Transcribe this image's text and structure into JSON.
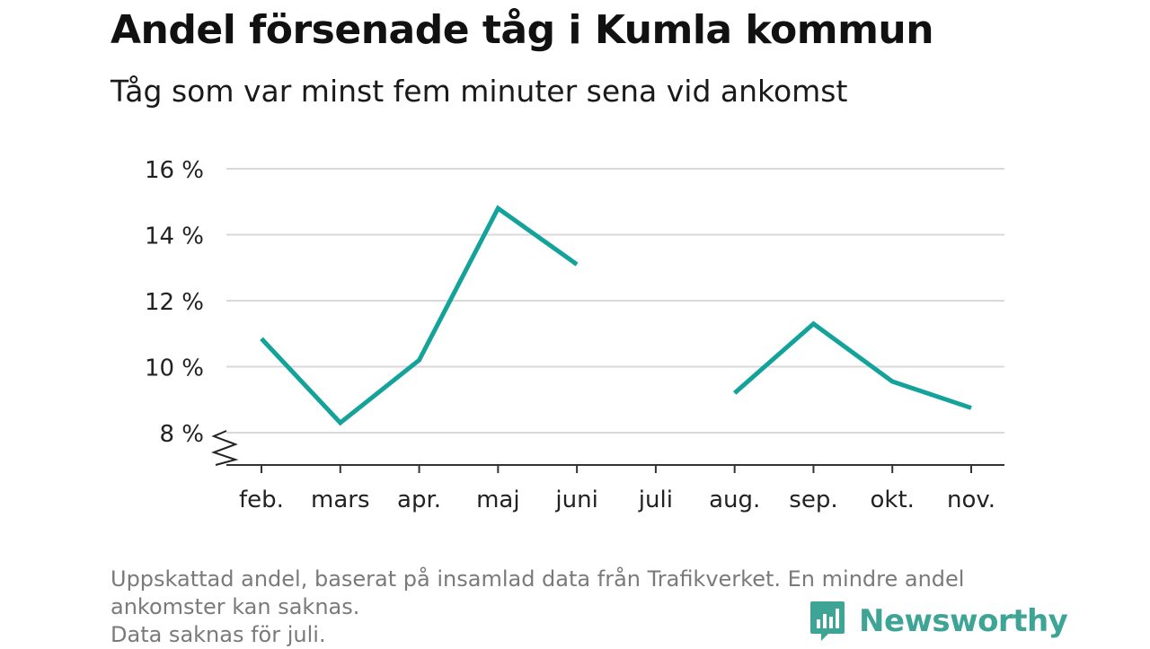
{
  "header": {
    "title": "Andel försenade tåg i Kumla kommun",
    "subtitle": "Tåg som var minst fem minuter sena vid ankomst"
  },
  "footnote": {
    "line1": "Uppskattad andel, baserat på insamlad data från Trafikverket. En mindre andel",
    "line2": "ankomster kan saknas.",
    "line3": "Data saknas för juli."
  },
  "logo": {
    "text": "Newsworthy",
    "icon": "newsworthy-bar-chart-icon",
    "color": "#3ea596"
  },
  "chart_data": {
    "type": "line",
    "title": "Andel försenade tåg i Kumla kommun",
    "subtitle": "Tåg som var minst fem minuter sena vid ankomst",
    "xlabel": "",
    "ylabel": "",
    "categories": [
      "feb.",
      "mars",
      "apr.",
      "maj",
      "juni",
      "juli",
      "aug.",
      "sep.",
      "okt.",
      "nov."
    ],
    "series": [
      {
        "values": [
          10.85,
          8.3,
          10.2,
          14.8,
          13.1,
          null,
          9.2,
          11.3,
          9.55,
          8.75
        ],
        "color": "#13a39a"
      }
    ],
    "y_ticks": [
      8,
      10,
      12,
      14,
      16
    ],
    "y_tick_labels": [
      "8 %",
      "10 %",
      "12 %",
      "14 %",
      "16 %"
    ],
    "ylim": [
      7,
      16
    ],
    "grid": true,
    "y_axis_break": true,
    "gridline_color": "#d9d9d9",
    "axis_color": "#333333"
  }
}
